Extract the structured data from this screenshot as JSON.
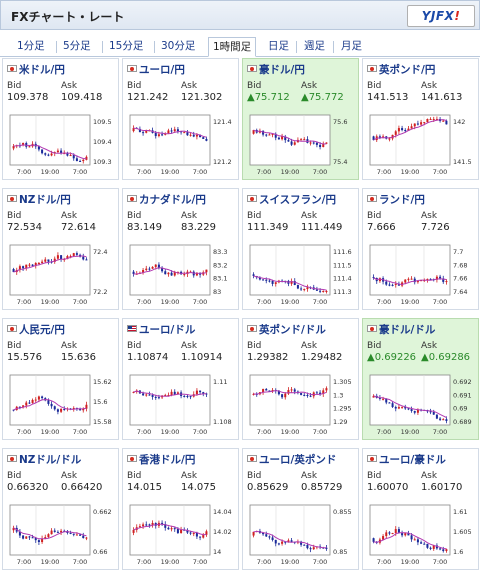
{
  "header": {
    "title": "FXチャート・レート",
    "logo_main": "YJFX",
    "logo_suffix": "!"
  },
  "tabs": [
    {
      "label": "1分足"
    },
    {
      "label": "5分足"
    },
    {
      "label": "15分足"
    },
    {
      "label": "30分足"
    },
    {
      "label": "1時間足",
      "active": true
    },
    {
      "label": "日足"
    },
    {
      "label": "週足"
    },
    {
      "label": "月足"
    }
  ],
  "labels": {
    "bid": "Bid",
    "ask": "Ask"
  },
  "colors": {
    "up": "#d02020",
    "down": "#1a2a9a",
    "ma": "#b23ab2",
    "highlight": "#dff5d9",
    "link": "#1a3a8a"
  },
  "pairs": [
    {
      "name": "米ドル/円",
      "bid": "109.378",
      "ask": "109.418",
      "flag": "flag-icon",
      "x_ticks": [
        "7:00",
        "19:00",
        "7:00"
      ],
      "y_ticks": [
        "109.5",
        "109.4",
        "109.3"
      ]
    },
    {
      "name": "ユーロ/円",
      "bid": "121.242",
      "ask": "121.302",
      "flag": "flag-icon",
      "x_ticks": [
        "7:00",
        "19:00",
        "7:00"
      ],
      "y_ticks": [
        "121.4",
        "121.2"
      ]
    },
    {
      "name": "豪ドル/円",
      "bid": "▲75.712",
      "ask": "▲75.772",
      "flag": "flag-icon",
      "highlight": true,
      "up": true,
      "x_ticks": [
        "7:00",
        "19:00",
        "7:00"
      ],
      "y_ticks": [
        "75.6",
        "75.4"
      ]
    },
    {
      "name": "英ポンド/円",
      "bid": "141.513",
      "ask": "141.613",
      "flag": "flag-icon",
      "x_ticks": [
        "7:00",
        "19:00",
        "7:00"
      ],
      "y_ticks": [
        "142",
        "141.5"
      ]
    },
    {
      "name": "NZドル/円",
      "bid": "72.534",
      "ask": "72.614",
      "flag": "flag-icon",
      "x_ticks": [
        "7:00",
        "19:00",
        "7:00"
      ],
      "y_ticks": [
        "72.4",
        "72.2"
      ]
    },
    {
      "name": "カナダドル/円",
      "bid": "83.149",
      "ask": "83.229",
      "flag": "flag-icon",
      "x_ticks": [
        "7:00",
        "19:00",
        "7:00"
      ],
      "y_ticks": [
        "83.3",
        "83.2",
        "83.1",
        "83"
      ]
    },
    {
      "name": "スイスフラン/円",
      "bid": "111.349",
      "ask": "111.449",
      "flag": "flag-icon",
      "x_ticks": [
        "7:00",
        "19:00",
        "7:00"
      ],
      "y_ticks": [
        "111.6",
        "111.5",
        "111.4",
        "111.3"
      ]
    },
    {
      "name": "ランド/円",
      "bid": "7.666",
      "ask": "7.726",
      "flag": "flag-icon",
      "x_ticks": [
        "7:00",
        "19:00",
        "7:00"
      ],
      "y_ticks": [
        "7.7",
        "7.68",
        "7.66",
        "7.64"
      ]
    },
    {
      "name": "人民元/円",
      "bid": "15.576",
      "ask": "15.636",
      "flag": "flag-icon",
      "x_ticks": [
        "7:00",
        "19:00",
        "7:00"
      ],
      "y_ticks": [
        "15.62",
        "15.6",
        "15.58"
      ]
    },
    {
      "name": "ユーロ/ドル",
      "bid": "1.10874",
      "ask": "1.10914",
      "flag": "flag-icon",
      "us": true,
      "x_ticks": [
        "7:00",
        "19:00",
        "7:00"
      ],
      "y_ticks": [
        "1.11",
        "1.108"
      ]
    },
    {
      "name": "英ポンド/ドル",
      "bid": "1.29382",
      "ask": "1.29482",
      "flag": "flag-icon",
      "x_ticks": [
        "7:00",
        "19:00",
        "7:00"
      ],
      "y_ticks": [
        "1.305",
        "1.3",
        "1.295",
        "1.29"
      ]
    },
    {
      "name": "豪ドル/ドル",
      "bid": "▲0.69226",
      "ask": "▲0.69286",
      "flag": "flag-icon",
      "highlight": true,
      "up": true,
      "x_ticks": [
        "7:00",
        "19:00",
        "7:00"
      ],
      "y_ticks": [
        "0.692",
        "0.691",
        "0.69",
        "0.689"
      ]
    },
    {
      "name": "NZドル/ドル",
      "bid": "0.66320",
      "ask": "0.66420",
      "flag": "flag-icon",
      "x_ticks": [
        "7:00",
        "19:00",
        "7:00"
      ],
      "y_ticks": [
        "0.662",
        "0.66"
      ]
    },
    {
      "name": "香港ドル/円",
      "bid": "14.015",
      "ask": "14.075",
      "flag": "flag-icon",
      "x_ticks": [
        "7:00",
        "19:00",
        "7:00"
      ],
      "y_ticks": [
        "14.04",
        "14.02",
        "14"
      ]
    },
    {
      "name": "ユーロ/英ポンド",
      "bid": "0.85629",
      "ask": "0.85729",
      "flag": "flag-icon",
      "x_ticks": [
        "7:00",
        "19:00",
        "7:00"
      ],
      "y_ticks": [
        "0.855",
        "0.85"
      ]
    },
    {
      "name": "ユーロ/豪ドル",
      "bid": "1.60070",
      "ask": "1.60170",
      "flag": "flag-icon",
      "x_ticks": [
        "7:00",
        "19:00",
        "7:00"
      ],
      "y_ticks": [
        "1.61",
        "1.605",
        "1.6"
      ]
    }
  ]
}
